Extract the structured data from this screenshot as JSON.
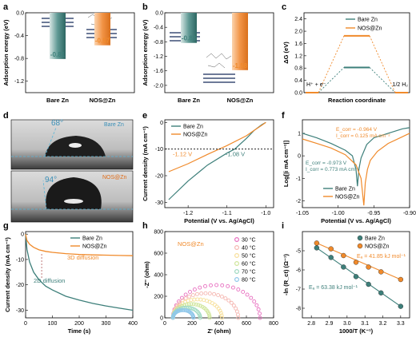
{
  "colors": {
    "bare": "#3d7f7a",
    "nos": "#f08a2b",
    "dash": "#5ab6d9",
    "black": "#000000"
  },
  "panels": {
    "a": "a",
    "b": "b",
    "c": "c",
    "d": "d",
    "e": "e",
    "f": "f",
    "g": "g",
    "h": "h",
    "i": "i"
  },
  "chart_data": [
    {
      "id": "a",
      "type": "bar",
      "ylabel": "Adsorption energy (eV)",
      "ylim": [
        -1.4,
        0
      ],
      "yticks": [
        "-1.2",
        "-0.8",
        "-0.4",
        "0.0"
      ],
      "ytick_values": [
        -1.2,
        -0.8,
        -0.4,
        0.0
      ],
      "categories": [
        "Bare Zn",
        "NOS@Zn"
      ],
      "values": [
        -0.81,
        -0.57
      ],
      "labels": [
        "-0.81",
        "-0.57"
      ]
    },
    {
      "id": "b",
      "type": "bar",
      "ylabel": "Adsorption energy (eV)",
      "ylim": [
        -2.2,
        0
      ],
      "yticks": [
        "-2.0",
        "-1.6",
        "-1.2",
        "-0.8",
        "-0.4",
        "0.0"
      ],
      "ytick_values": [
        -2.0,
        -1.6,
        -1.2,
        -0.8,
        -0.4,
        0.0
      ],
      "categories": [
        "Bare Zn",
        "NOS@Zn"
      ],
      "values": [
        -0.83,
        -1.58
      ],
      "labels": [
        "-0.83",
        "-1.58"
      ]
    },
    {
      "id": "c",
      "type": "line",
      "ylabel": "ΔG (eV)",
      "xlabel": "Reaction coordinate",
      "ylim": [
        0,
        2.6
      ],
      "yticks": [
        "0.0",
        "0.4",
        "0.8",
        "1.2",
        "1.6",
        "2.0",
        "2.4"
      ],
      "ytick_values": [
        0.0,
        0.4,
        0.8,
        1.2,
        1.6,
        2.0,
        2.4
      ],
      "start_label": "H⁺ + e⁻",
      "end_label": "1/2 H₂",
      "series": [
        {
          "name": "Bare Zn",
          "values": [
            0,
            0.82,
            0
          ]
        },
        {
          "name": "NOS@Zn",
          "values": [
            0,
            1.85,
            0
          ]
        }
      ]
    },
    {
      "id": "d",
      "angle_top": "68°",
      "label_top": "Bare Zn",
      "angle_bottom": "94°",
      "label_bottom": "NOS@Zn"
    },
    {
      "id": "e",
      "type": "line",
      "ylabel": "Current density (mA cm⁻²)",
      "xlabel": "Potential (V vs. Ag/AgCl)",
      "xlim": [
        -1.26,
        -0.98
      ],
      "ylim": [
        -32,
        1
      ],
      "xticks": [
        "-1.2",
        "-1.1",
        "-1.0"
      ],
      "xtick_values": [
        -1.2,
        -1.1,
        -1.0
      ],
      "yticks": [
        "0",
        "-10",
        "-20",
        "-30"
      ],
      "ytick_values": [
        0,
        -10,
        -20,
        -30
      ],
      "ref_y": -10,
      "annotations": [
        "-1.12 V",
        "-1.08 V"
      ],
      "series": [
        {
          "name": "Bare Zn",
          "x": [
            -1.25,
            -1.2,
            -1.15,
            -1.1,
            -1.08,
            -1.05,
            -1.03,
            -1.01,
            -1.0
          ],
          "y": [
            -29,
            -22,
            -16,
            -11.5,
            -10,
            -6,
            -3,
            -0.8,
            0
          ]
        },
        {
          "name": "NOS@Zn",
          "x": [
            -1.25,
            -1.2,
            -1.15,
            -1.12,
            -1.1,
            -1.05,
            -1.03,
            -1.01,
            -1.0
          ],
          "y": [
            -18.5,
            -15.5,
            -12,
            -10,
            -8.7,
            -5,
            -3,
            -1,
            0
          ]
        }
      ]
    },
    {
      "id": "f",
      "type": "line",
      "ylabel": "Log[|i mA cm⁻²|]",
      "xlabel": "Potential (V vs. Ag/AgCl)",
      "xlim": [
        -1.05,
        -0.9
      ],
      "ylim": [
        -2.3,
        1.6
      ],
      "xticks": [
        "-1.05",
        "-1.00",
        "-0.95",
        "-0.90"
      ],
      "xtick_values": [
        -1.05,
        -1.0,
        -0.95,
        -0.9
      ],
      "yticks": [
        "-2",
        "-1",
        "0",
        "1"
      ],
      "ytick_values": [
        -2,
        -1,
        0,
        1
      ],
      "annot_nos_1": "E_corr = -0.964 V",
      "annot_nos_2": "I_corr = 0.125 mA cm⁻²",
      "annot_bare_1": "E_corr = -0.973 V",
      "annot_bare_2": "I_corr = 0.773 mA cm⁻²",
      "series": [
        {
          "name": "Bare Zn",
          "x": [
            -1.05,
            -1.03,
            -1.01,
            -0.99,
            -0.98,
            -0.975,
            -0.973,
            -0.971,
            -0.968,
            -0.96,
            -0.95,
            -0.93,
            -0.91,
            -0.9
          ],
          "y": [
            1.0,
            0.8,
            0.55,
            0.25,
            0.0,
            -0.6,
            -1.35,
            -0.6,
            -0.1,
            0.5,
            0.8,
            1.0,
            1.2,
            1.25
          ]
        },
        {
          "name": "NOS@Zn",
          "x": [
            -1.05,
            -1.03,
            -1.01,
            -0.99,
            -0.975,
            -0.968,
            -0.964,
            -0.962,
            -0.959,
            -0.955,
            -0.945,
            -0.93,
            -0.91,
            -0.9
          ],
          "y": [
            0.75,
            0.55,
            0.35,
            0.05,
            -0.4,
            -1.0,
            -2.2,
            -1.2,
            -0.6,
            -0.2,
            0.2,
            0.55,
            0.85,
            1.0
          ]
        }
      ]
    },
    {
      "id": "g",
      "type": "line",
      "ylabel": "Current density (mA cm⁻²)",
      "xlabel": "Time (s)",
      "xlim": [
        0,
        400
      ],
      "ylim": [
        -33,
        1
      ],
      "xticks": [
        "0",
        "100",
        "200",
        "300",
        "400"
      ],
      "xtick_values": [
        0,
        100,
        200,
        300,
        400
      ],
      "yticks": [
        "0",
        "-10",
        "-20",
        "-30"
      ],
      "ytick_values": [
        0,
        -10,
        -20,
        -30
      ],
      "annot_3d": "3D diffusion",
      "annot_2d": "2D diffusion",
      "series": [
        {
          "name": "Bare Zn",
          "x": [
            0,
            5,
            15,
            30,
            50,
            75,
            100,
            150,
            200,
            250,
            300,
            350,
            400
          ],
          "y": [
            0,
            -6,
            -11,
            -15,
            -18,
            -20.5,
            -22,
            -24.5,
            -26,
            -27.3,
            -28.3,
            -29.2,
            -30
          ]
        },
        {
          "name": "NOS@Zn",
          "x": [
            0,
            5,
            15,
            30,
            50,
            75,
            100,
            150,
            200,
            250,
            300,
            350,
            400
          ],
          "y": [
            0,
            -2.5,
            -4,
            -5.2,
            -6.2,
            -6.8,
            -7.2,
            -7.7,
            -8,
            -8.2,
            -8.3,
            -8.4,
            -8.5
          ]
        }
      ]
    },
    {
      "id": "h",
      "type": "scatter",
      "ylabel": "-Z'' (ohm)",
      "xlabel": "Z' (ohm)",
      "xlim": [
        0,
        800
      ],
      "ylim": [
        0,
        800
      ],
      "xticks": [
        "0",
        "200",
        "400",
        "600",
        "800"
      ],
      "xtick_values": [
        0,
        200,
        400,
        600,
        800
      ],
      "yticks": [
        "0",
        "200",
        "400",
        "600",
        "800"
      ],
      "ytick_values": [
        0,
        200,
        400,
        600,
        800
      ],
      "sample_label": "NOS@Zn",
      "series": [
        {
          "name": "30 °C",
          "R": 640,
          "color": "#e86fc0"
        },
        {
          "name": "40 °C",
          "R": 480,
          "color": "#f5b7b1"
        },
        {
          "name": "50 °C",
          "R": 360,
          "color": "#f7df9a"
        },
        {
          "name": "60 °C",
          "R": 270,
          "color": "#cfe59a"
        },
        {
          "name": "70 °C",
          "R": 200,
          "color": "#9ed9c0"
        },
        {
          "name": "80 °C",
          "R": 150,
          "color": "#8fc7ea"
        }
      ]
    },
    {
      "id": "i",
      "type": "scatter",
      "ylabel": "-ln (R_ct) (Ω⁻¹)",
      "xlabel": "1000/T (K⁻¹)",
      "xlim": [
        2.75,
        3.35
      ],
      "ylim": [
        -8.5,
        -4
      ],
      "xticks": [
        "2.8",
        "2.9",
        "3.0",
        "3.1",
        "3.2",
        "3.3"
      ],
      "xtick_values": [
        2.8,
        2.9,
        3.0,
        3.1,
        3.2,
        3.3
      ],
      "yticks": [
        "-5",
        "-6",
        "-7",
        "-8"
      ],
      "ytick_values": [
        -5,
        -6,
        -7,
        -8
      ],
      "annot_nos": "Eₐ = 41.85 kJ mol⁻¹",
      "annot_bare": "Eₐ = 63.38 kJ mol⁻¹",
      "series": [
        {
          "name": "Bare Zn",
          "x": [
            2.83,
            2.91,
            2.98,
            3.05,
            3.12,
            3.19,
            3.3
          ],
          "y": [
            -4.85,
            -5.35,
            -5.85,
            -6.35,
            -6.75,
            -7.2,
            -7.9
          ]
        },
        {
          "name": "NOS@Zn",
          "x": [
            2.83,
            2.91,
            2.98,
            3.05,
            3.12,
            3.19,
            3.3
          ],
          "y": [
            -4.6,
            -4.9,
            -5.25,
            -5.6,
            -5.85,
            -6.1,
            -6.5
          ]
        }
      ]
    }
  ]
}
